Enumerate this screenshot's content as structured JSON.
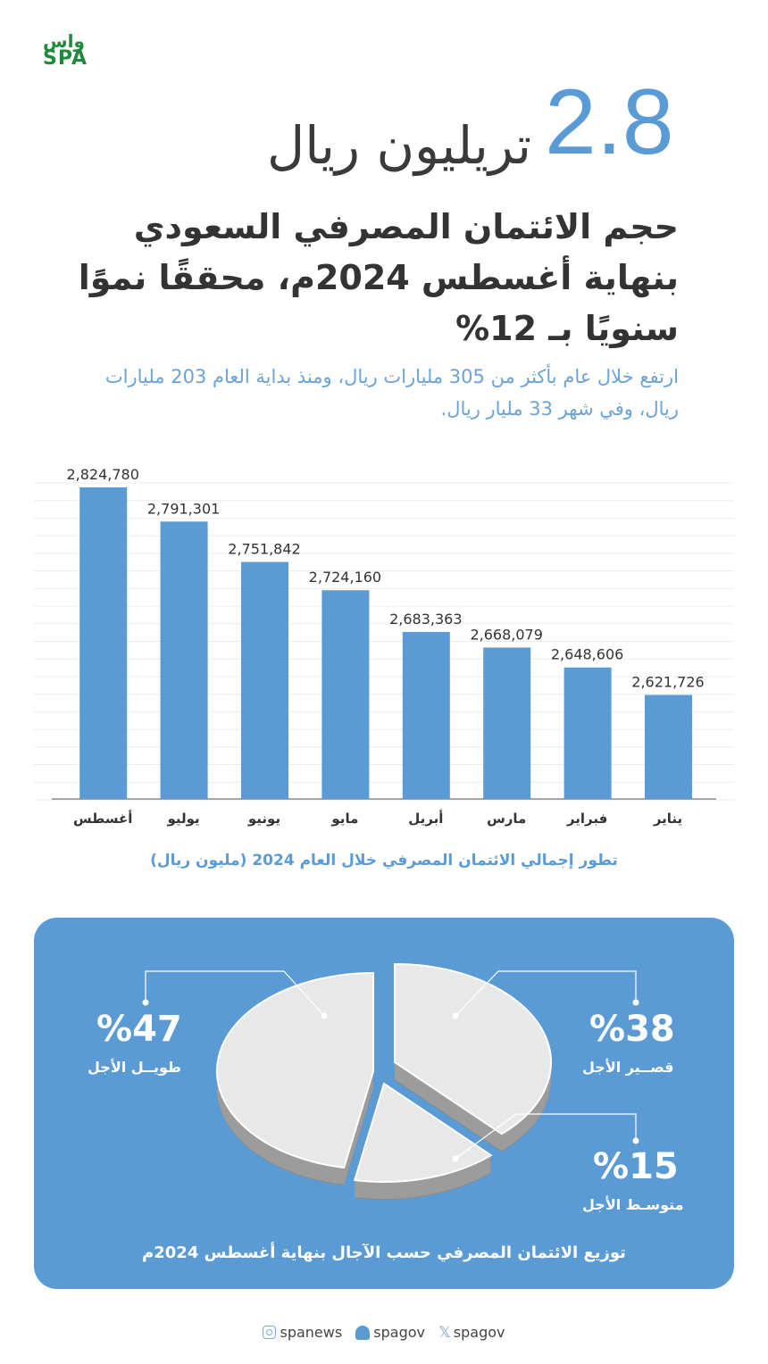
{
  "logo": {
    "arabic": "واس",
    "english": "SPA",
    "color": "#1f8a3c"
  },
  "hero": {
    "number": "2.8",
    "unit": "تريليون ريال"
  },
  "headline": "حجم الائتمان المصرفي السعودي بنهاية أغسطس 2024م، محققًا نموًا سنويًا بـ 12%",
  "subtext": "ارتفع خلال عام بأكثر من 305 مليارات ريال، ومنذ بداية العام 203 مليارات ريال، وفي شهر 33 مليار ريال.",
  "colors": {
    "accent": "#5b9bd5",
    "bar": "#5b9bd5",
    "text": "#333333",
    "pie_top": "#e8e8e8",
    "pie_side": "#9c9c9c"
  },
  "chart_data": [
    {
      "type": "bar",
      "title": "تطور إجمالي الائتمان المصرفي خلال العام 2024 (مليون ريال)",
      "categories": [
        "يناير",
        "فبراير",
        "مارس",
        "أبريل",
        "مايو",
        "يونيو",
        "يوليو",
        "أغسطس"
      ],
      "values": [
        2621726,
        2648606,
        2668079,
        2683363,
        2724160,
        2751842,
        2791301,
        2824780
      ],
      "data_labels": [
        "2,621,726",
        "2,648,606",
        "2,668,079",
        "2,683,363",
        "2,724,160",
        "2,751,842",
        "2,791,301",
        "2,824,780"
      ],
      "x_direction": "right-to-left",
      "ylim": [
        2520000,
        2830000
      ],
      "grid": true,
      "y_axis_labels": false
    },
    {
      "type": "pie",
      "title": "توزيع الائتمان المصرفي حسب الآجال بنهاية أغسطس 2024م",
      "style": "3d-exploded",
      "slices": [
        {
          "label": "قصير الأجل",
          "value": 38,
          "display": "%38",
          "display_label": "قصــير الأجل"
        },
        {
          "label": "متوسط الأجل",
          "value": 15,
          "display": "%15",
          "display_label": "متوسـط الأجل"
        },
        {
          "label": "طويل الأجل",
          "value": 47,
          "display": "%47",
          "display_label": "طويــل الأجل"
        }
      ]
    }
  ],
  "social": [
    {
      "icon": "instagram-icon",
      "handle": "spanews"
    },
    {
      "icon": "snapchat-icon",
      "handle": "spagov"
    },
    {
      "icon": "x-icon",
      "handle": "spagov"
    }
  ]
}
